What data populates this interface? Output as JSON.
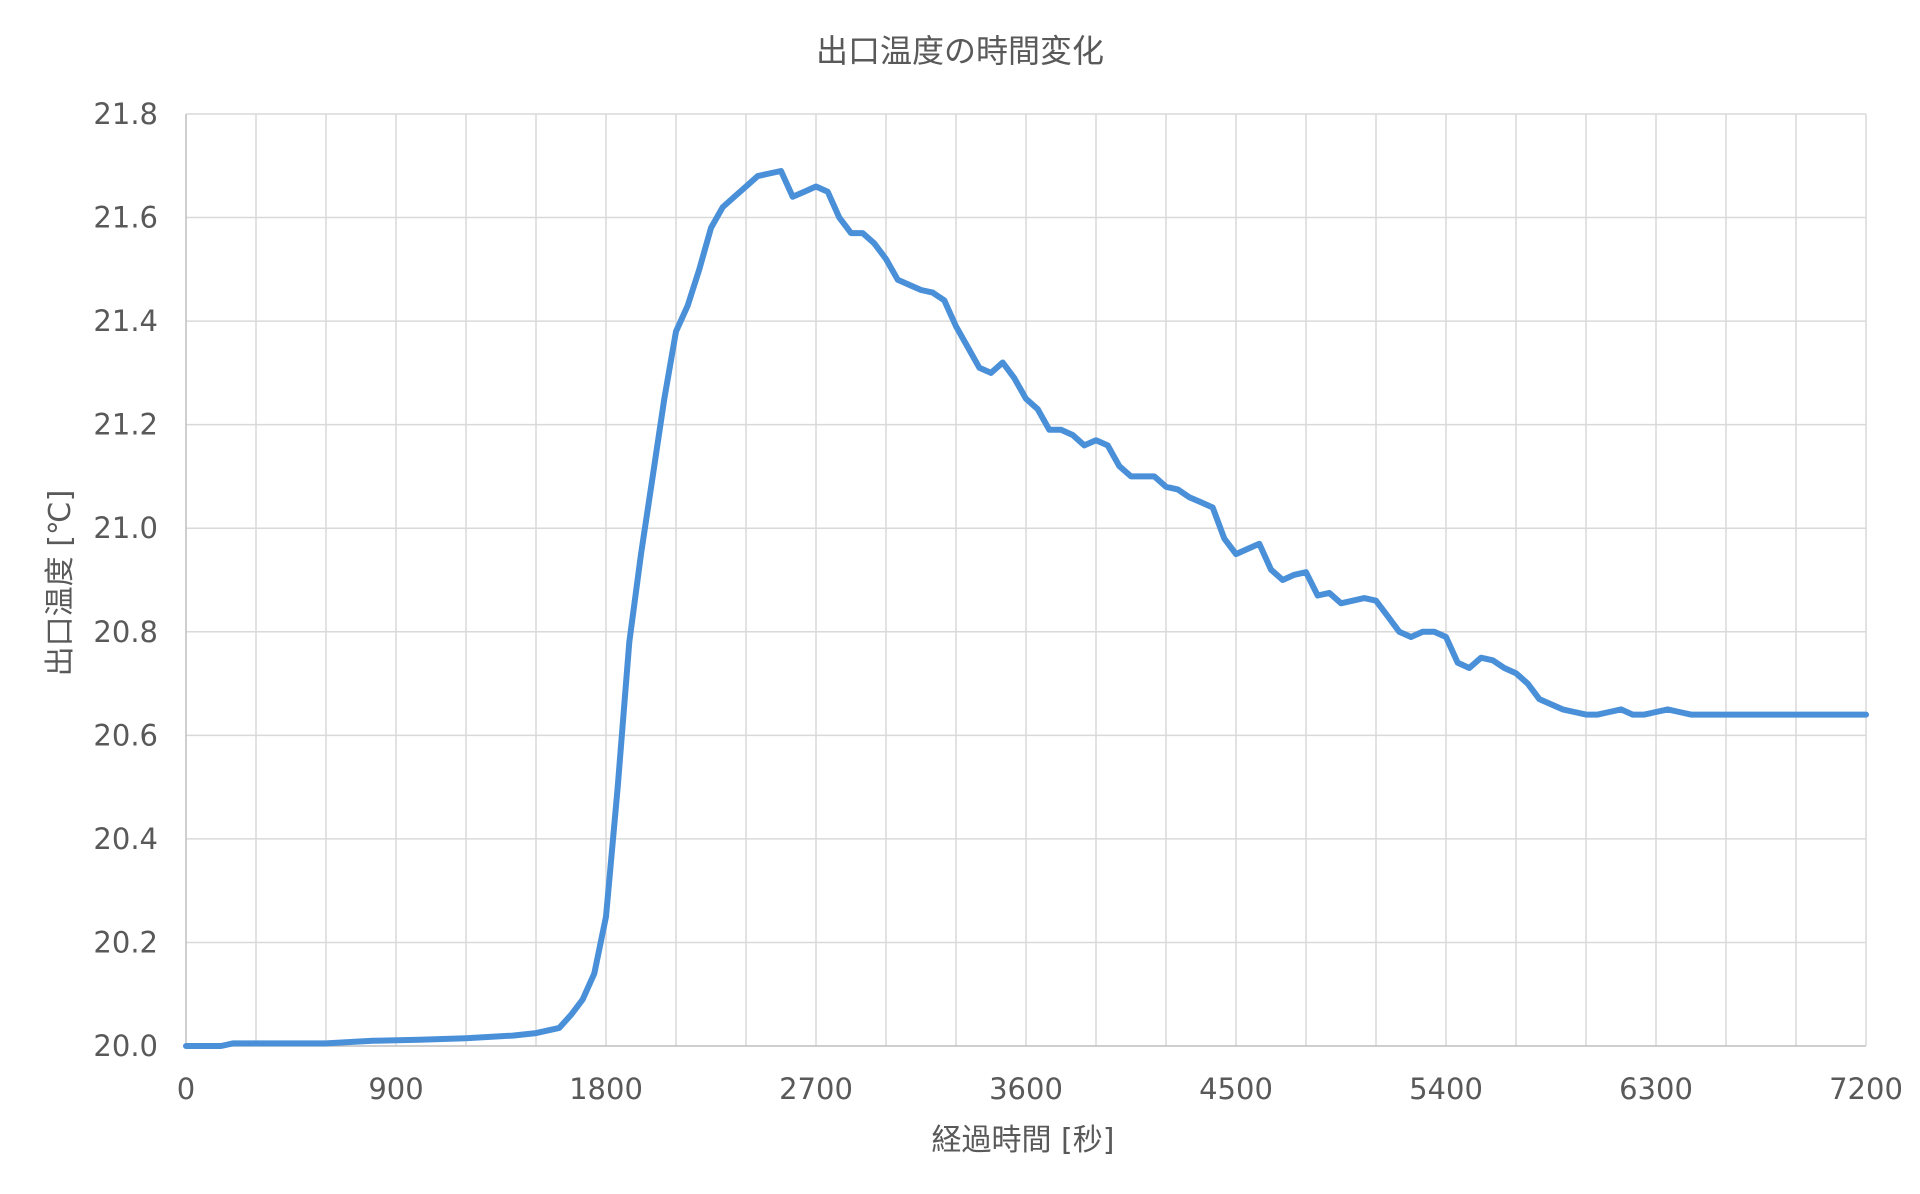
{
  "chart_data": {
    "type": "line",
    "title": "出口温度の時間変化",
    "xlabel": "経過時間 [秒]",
    "ylabel": "出口温度 [℃]",
    "xlim": [
      0,
      7200
    ],
    "ylim": [
      20.0,
      21.8
    ],
    "x_ticks": [
      "0",
      "900",
      "1800",
      "2700",
      "3600",
      "4500",
      "5400",
      "6300",
      "7200"
    ],
    "y_ticks": [
      "20.0",
      "20.2",
      "20.4",
      "20.6",
      "20.8",
      "21.0",
      "21.2",
      "21.4",
      "21.6",
      "21.8"
    ],
    "x_tick_values": [
      0,
      900,
      1800,
      2700,
      3600,
      4500,
      5400,
      6300,
      7200
    ],
    "y_tick_values": [
      20.0,
      20.2,
      20.4,
      20.6,
      20.8,
      21.0,
      21.2,
      21.4,
      21.6,
      21.8
    ],
    "x_minor_grid_step": 300,
    "grid": true,
    "legend": "none",
    "series_color": "#4a90d9",
    "series": [
      {
        "x": [
          0,
          150,
          200,
          400,
          600,
          800,
          1000,
          1200,
          1400,
          1500,
          1600,
          1650,
          1700,
          1750,
          1800,
          1850,
          1900,
          1950,
          2000,
          2050,
          2100,
          2150,
          2200,
          2250,
          2300,
          2350,
          2400,
          2450,
          2500,
          2550,
          2600,
          2650,
          2700,
          2750,
          2800,
          2850,
          2900,
          2950,
          3000,
          3050,
          3100,
          3150,
          3200,
          3250,
          3300,
          3350,
          3400,
          3450,
          3500,
          3550,
          3600,
          3650,
          3700,
          3750,
          3800,
          3850,
          3900,
          3950,
          4000,
          4050,
          4100,
          4150,
          4200,
          4250,
          4300,
          4350,
          4400,
          4450,
          4500,
          4550,
          4600,
          4650,
          4700,
          4750,
          4800,
          4850,
          4900,
          4950,
          5000,
          5050,
          5100,
          5150,
          5200,
          5250,
          5300,
          5350,
          5400,
          5450,
          5500,
          5550,
          5600,
          5650,
          5700,
          5750,
          5800,
          5850,
          5900,
          5950,
          6000,
          6050,
          6100,
          6150,
          6200,
          6250,
          6300,
          6350,
          6400,
          6450,
          6500,
          6550,
          6600,
          6650,
          6700,
          6750,
          6800,
          6850,
          6900,
          6950,
          7000,
          7050,
          7100,
          7150,
          7200
        ],
        "y": [
          20.0,
          20.0,
          20.005,
          20.005,
          20.005,
          20.01,
          20.012,
          20.015,
          20.02,
          20.025,
          20.035,
          20.06,
          20.09,
          20.14,
          20.25,
          20.5,
          20.78,
          20.95,
          21.1,
          21.25,
          21.38,
          21.43,
          21.5,
          21.58,
          21.62,
          21.64,
          21.66,
          21.68,
          21.685,
          21.69,
          21.64,
          21.65,
          21.66,
          21.65,
          21.6,
          21.57,
          21.57,
          21.55,
          21.52,
          21.48,
          21.47,
          21.46,
          21.455,
          21.44,
          21.39,
          21.35,
          21.31,
          21.3,
          21.32,
          21.29,
          21.25,
          21.23,
          21.19,
          21.19,
          21.18,
          21.16,
          21.17,
          21.16,
          21.12,
          21.1,
          21.1,
          21.1,
          21.08,
          21.075,
          21.06,
          21.05,
          21.04,
          20.98,
          20.95,
          20.96,
          20.97,
          20.92,
          20.9,
          20.91,
          20.915,
          20.87,
          20.875,
          20.855,
          20.86,
          20.865,
          20.86,
          20.83,
          20.8,
          20.79,
          20.8,
          20.8,
          20.79,
          20.74,
          20.73,
          20.75,
          20.745,
          20.73,
          20.72,
          20.7,
          20.67,
          20.66,
          20.65,
          20.645,
          20.64,
          20.64,
          20.645,
          20.65,
          20.64,
          20.64,
          20.645,
          20.65,
          20.645,
          20.64,
          20.64,
          20.64,
          20.64,
          20.64,
          20.64,
          20.64,
          20.64,
          20.64,
          20.64,
          20.64,
          20.64,
          20.64,
          20.64,
          20.64,
          20.64
        ]
      }
    ]
  }
}
